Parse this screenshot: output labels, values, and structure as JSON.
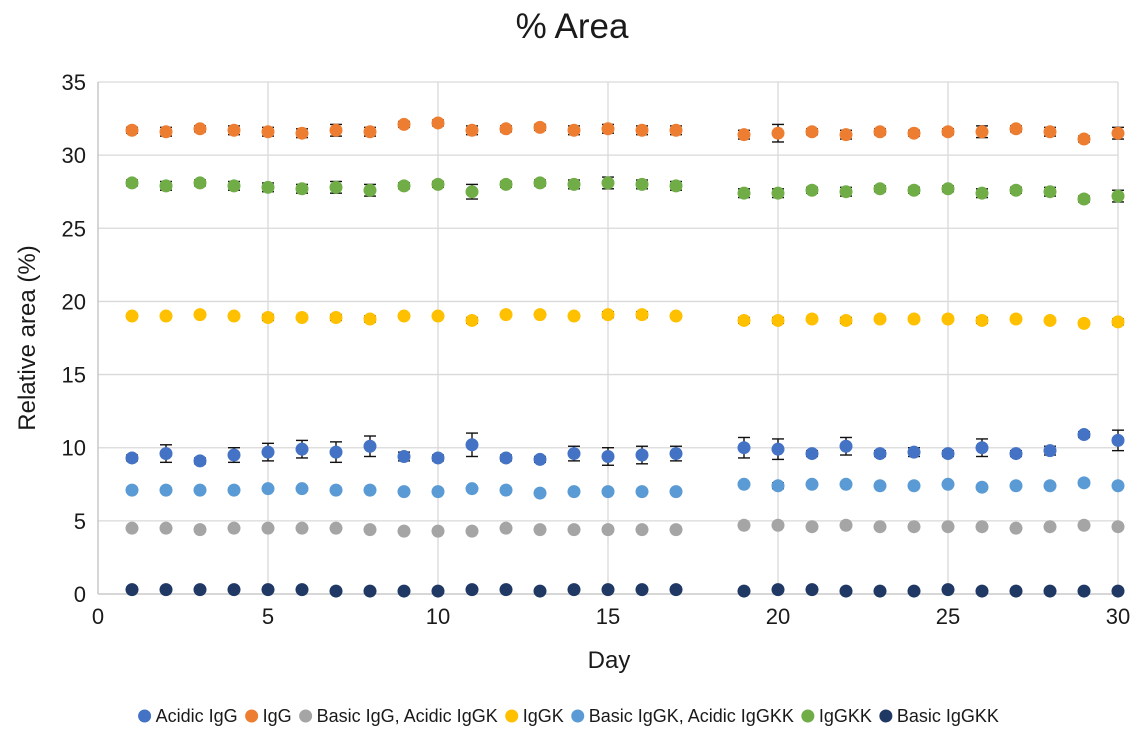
{
  "chart_data": {
    "type": "scatter",
    "title": "% Area",
    "xlabel": "Day",
    "ylabel": "Relative area (%)",
    "xlim": [
      0,
      30
    ],
    "ylim": [
      0,
      35
    ],
    "x_ticks": [
      "0",
      "5",
      "10",
      "15",
      "20",
      "25",
      "30"
    ],
    "y_ticks": [
      "0",
      "5",
      "10",
      "15",
      "20",
      "25",
      "30",
      "35"
    ],
    "grid": true,
    "legend_position": "bottom",
    "x": [
      1,
      2,
      3,
      4,
      5,
      6,
      7,
      8,
      9,
      10,
      11,
      12,
      13,
      14,
      15,
      16,
      17,
      19,
      20,
      21,
      22,
      23,
      24,
      25,
      26,
      27,
      28,
      29,
      30
    ],
    "series": [
      {
        "name": "Acidic IgG",
        "color": "#4472c4",
        "values": [
          9.3,
          9.6,
          9.1,
          9.5,
          9.7,
          9.9,
          9.7,
          10.1,
          9.4,
          9.3,
          10.2,
          9.3,
          9.2,
          9.6,
          9.4,
          9.5,
          9.6,
          10.0,
          9.9,
          9.6,
          10.1,
          9.6,
          9.7,
          9.6,
          10.0,
          9.6,
          9.8,
          10.9,
          10.5
        ],
        "errors": [
          0.2,
          0.6,
          0.2,
          0.5,
          0.6,
          0.6,
          0.7,
          0.7,
          0.3,
          0.2,
          0.8,
          0.2,
          0.2,
          0.5,
          0.6,
          0.6,
          0.5,
          0.7,
          0.7,
          0.2,
          0.6,
          0.2,
          0.3,
          0.2,
          0.6,
          0.2,
          0.3,
          0.2,
          0.7
        ]
      },
      {
        "name": "IgG",
        "color": "#ed7d31",
        "values": [
          31.7,
          31.6,
          31.8,
          31.7,
          31.6,
          31.5,
          31.7,
          31.6,
          32.1,
          32.2,
          31.7,
          31.8,
          31.9,
          31.7,
          31.8,
          31.7,
          31.7,
          31.4,
          31.5,
          31.6,
          31.4,
          31.6,
          31.5,
          31.6,
          31.6,
          31.8,
          31.6,
          31.1,
          31.5
        ],
        "errors": [
          0.2,
          0.3,
          0.2,
          0.3,
          0.3,
          0.3,
          0.4,
          0.3,
          0.2,
          0.2,
          0.3,
          0.2,
          0.2,
          0.3,
          0.3,
          0.3,
          0.3,
          0.3,
          0.6,
          0.2,
          0.3,
          0.2,
          0.2,
          0.2,
          0.4,
          0.2,
          0.3,
          0.2,
          0.4
        ]
      },
      {
        "name": "Basic IgG, Acidic IgGK",
        "color": "#a5a5a5",
        "values": [
          4.5,
          4.5,
          4.4,
          4.5,
          4.5,
          4.5,
          4.5,
          4.4,
          4.3,
          4.3,
          4.3,
          4.5,
          4.4,
          4.4,
          4.4,
          4.4,
          4.4,
          4.7,
          4.7,
          4.6,
          4.7,
          4.6,
          4.6,
          4.6,
          4.6,
          4.5,
          4.6,
          4.7,
          4.6
        ],
        "errors": [
          0.1,
          0.1,
          0.1,
          0.1,
          0.1,
          0.1,
          0.1,
          0.1,
          0.1,
          0.1,
          0.1,
          0.1,
          0.1,
          0.1,
          0.1,
          0.1,
          0.1,
          0.1,
          0.1,
          0.1,
          0.1,
          0.1,
          0.1,
          0.1,
          0.1,
          0.1,
          0.1,
          0.1,
          0.1
        ]
      },
      {
        "name": "IgGK",
        "color": "#ffc000",
        "values": [
          19.0,
          19.0,
          19.1,
          19.0,
          18.9,
          18.9,
          18.9,
          18.8,
          19.0,
          19.0,
          18.7,
          19.1,
          19.1,
          19.0,
          19.1,
          19.1,
          19.0,
          18.7,
          18.7,
          18.8,
          18.7,
          18.8,
          18.8,
          18.8,
          18.7,
          18.8,
          18.7,
          18.5,
          18.6
        ],
        "errors": [
          0.1,
          0.1,
          0.1,
          0.1,
          0.2,
          0.1,
          0.2,
          0.2,
          0.1,
          0.1,
          0.2,
          0.1,
          0.1,
          0.1,
          0.2,
          0.2,
          0.1,
          0.2,
          0.2,
          0.1,
          0.2,
          0.1,
          0.1,
          0.1,
          0.2,
          0.1,
          0.1,
          0.1,
          0.2
        ]
      },
      {
        "name": "Basic IgGK, Acidic IgGKK",
        "color": "#5b9bd5",
        "values": [
          7.1,
          7.1,
          7.1,
          7.1,
          7.2,
          7.2,
          7.1,
          7.1,
          7.0,
          7.0,
          7.2,
          7.1,
          6.9,
          7.0,
          7.0,
          7.0,
          7.0,
          7.5,
          7.4,
          7.5,
          7.5,
          7.4,
          7.4,
          7.5,
          7.3,
          7.4,
          7.4,
          7.6,
          7.4
        ],
        "errors": [
          0.1,
          0.1,
          0.1,
          0.1,
          0.1,
          0.1,
          0.1,
          0.1,
          0.1,
          0.1,
          0.1,
          0.1,
          0.1,
          0.1,
          0.1,
          0.1,
          0.1,
          0.1,
          0.2,
          0.1,
          0.1,
          0.1,
          0.1,
          0.1,
          0.1,
          0.1,
          0.1,
          0.1,
          0.1
        ]
      },
      {
        "name": "IgGKK",
        "color": "#70ad47",
        "values": [
          28.1,
          27.9,
          28.1,
          27.9,
          27.8,
          27.7,
          27.8,
          27.6,
          27.9,
          28.0,
          27.5,
          28.0,
          28.1,
          28.0,
          28.1,
          28.0,
          27.9,
          27.4,
          27.4,
          27.6,
          27.5,
          27.7,
          27.6,
          27.7,
          27.4,
          27.6,
          27.5,
          27.0,
          27.2
        ],
        "errors": [
          0.2,
          0.3,
          0.2,
          0.3,
          0.3,
          0.3,
          0.4,
          0.4,
          0.2,
          0.2,
          0.5,
          0.2,
          0.2,
          0.3,
          0.4,
          0.3,
          0.3,
          0.3,
          0.3,
          0.2,
          0.3,
          0.2,
          0.2,
          0.2,
          0.3,
          0.2,
          0.3,
          0.2,
          0.4
        ]
      },
      {
        "name": "Basic IgGKK",
        "color": "#203864",
        "values": [
          0.3,
          0.3,
          0.3,
          0.3,
          0.3,
          0.3,
          0.2,
          0.2,
          0.2,
          0.2,
          0.3,
          0.3,
          0.2,
          0.3,
          0.3,
          0.3,
          0.3,
          0.2,
          0.3,
          0.3,
          0.2,
          0.2,
          0.2,
          0.3,
          0.2,
          0.2,
          0.2,
          0.2,
          0.2
        ],
        "errors": [
          0.1,
          0.1,
          0.1,
          0.1,
          0.1,
          0.1,
          0.1,
          0.1,
          0.1,
          0.1,
          0.1,
          0.1,
          0.1,
          0.1,
          0.1,
          0.1,
          0.1,
          0.1,
          0.1,
          0.1,
          0.1,
          0.1,
          0.1,
          0.1,
          0.1,
          0.1,
          0.1,
          0.1,
          0.1
        ]
      }
    ]
  }
}
